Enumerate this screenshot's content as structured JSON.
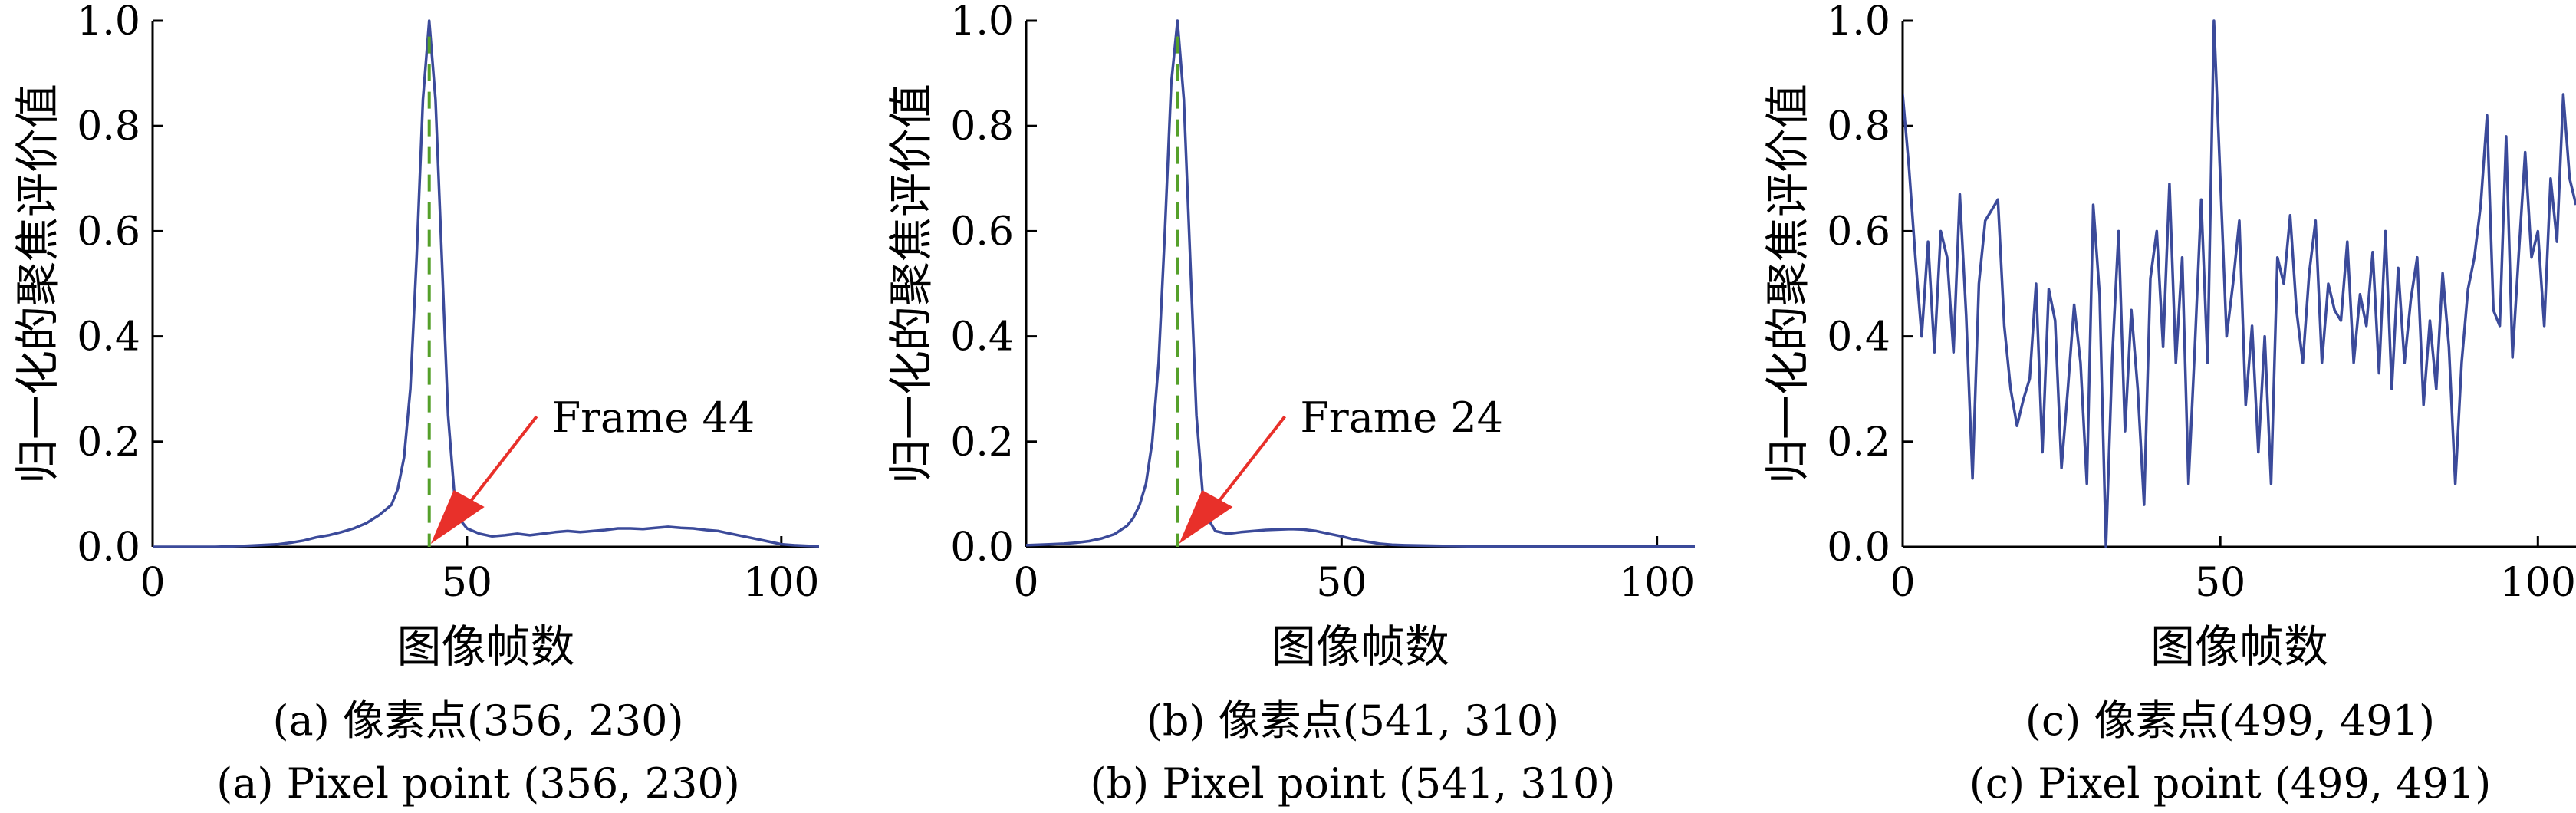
{
  "colors": {
    "line": "#3b4a9a",
    "peak_marker": "#55a02a",
    "arrow": "#e8302a",
    "axis": "#000000"
  },
  "chart_data": [
    {
      "type": "line",
      "title": "",
      "xlabel": "图像帧数",
      "ylabel": "归一化的聚焦评价值",
      "xlim": [
        0,
        106
      ],
      "ylim": [
        0,
        1.0
      ],
      "xticks": [
        "0",
        "50",
        "100"
      ],
      "yticks": [
        "0.0",
        "0.2",
        "0.4",
        "0.6",
        "0.8",
        "1.0"
      ],
      "grid": false,
      "legend": "none",
      "caption_cn": "(a) 像素点(356, 230)",
      "caption_en": "(a) Pixel point (356, 230)",
      "peak_frame": 44,
      "annotation": {
        "text": "Frame 44",
        "x": 44
      },
      "series": [
        {
          "x": [
            0,
            5,
            10,
            15,
            20,
            22,
            24,
            26,
            28,
            30,
            32,
            34,
            36,
            38,
            39,
            40,
            41,
            42,
            43,
            44,
            45,
            46,
            47,
            48,
            49,
            50,
            52,
            54,
            56,
            58,
            60,
            62,
            64,
            66,
            68,
            70,
            72,
            74,
            76,
            78,
            80,
            82,
            84,
            86,
            88,
            90,
            92,
            94,
            96,
            98,
            100,
            102,
            104,
            106
          ],
          "y": [
            0,
            0,
            0,
            0.002,
            0.005,
            0.008,
            0.012,
            0.018,
            0.022,
            0.028,
            0.035,
            0.045,
            0.06,
            0.08,
            0.11,
            0.17,
            0.3,
            0.55,
            0.85,
            1.0,
            0.85,
            0.55,
            0.25,
            0.1,
            0.05,
            0.035,
            0.025,
            0.02,
            0.022,
            0.025,
            0.022,
            0.025,
            0.028,
            0.03,
            0.028,
            0.03,
            0.032,
            0.035,
            0.035,
            0.034,
            0.036,
            0.038,
            0.036,
            0.035,
            0.032,
            0.03,
            0.025,
            0.02,
            0.015,
            0.01,
            0.005,
            0.003,
            0.002,
            0.001
          ]
        }
      ]
    },
    {
      "type": "line",
      "title": "",
      "xlabel": "图像帧数",
      "ylabel": "归一化的聚焦评价值",
      "xlim": [
        0,
        106
      ],
      "ylim": [
        0,
        1.0
      ],
      "xticks": [
        "0",
        "50",
        "100"
      ],
      "yticks": [
        "0.0",
        "0.2",
        "0.4",
        "0.6",
        "0.8",
        "1.0"
      ],
      "grid": false,
      "legend": "none",
      "caption_cn": "(b) 像素点(541, 310)",
      "caption_en": "(b) Pixel point (541, 310)",
      "peak_frame": 24,
      "annotation": {
        "text": "Frame 24",
        "x": 24
      },
      "series": [
        {
          "x": [
            0,
            2,
            4,
            6,
            8,
            10,
            12,
            14,
            16,
            17,
            18,
            19,
            20,
            21,
            22,
            23,
            24,
            25,
            26,
            27,
            28,
            29,
            30,
            32,
            34,
            36,
            38,
            40,
            42,
            44,
            46,
            48,
            50,
            52,
            54,
            56,
            58,
            60,
            65,
            70,
            80,
            90,
            100,
            106
          ],
          "y": [
            0.003,
            0.004,
            0.005,
            0.006,
            0.008,
            0.011,
            0.016,
            0.024,
            0.04,
            0.055,
            0.08,
            0.12,
            0.2,
            0.35,
            0.6,
            0.88,
            1.0,
            0.85,
            0.55,
            0.25,
            0.1,
            0.05,
            0.03,
            0.025,
            0.028,
            0.03,
            0.032,
            0.033,
            0.034,
            0.033,
            0.03,
            0.025,
            0.02,
            0.014,
            0.01,
            0.006,
            0.004,
            0.003,
            0.002,
            0.001,
            0.001,
            0.001,
            0.001,
            0.001
          ]
        }
      ]
    },
    {
      "type": "line",
      "title": "",
      "xlabel": "图像帧数",
      "ylabel": "归一化的聚焦评价值",
      "xlim": [
        0,
        106
      ],
      "ylim": [
        0,
        1.0
      ],
      "xticks": [
        "0",
        "50",
        "100"
      ],
      "yticks": [
        "0.0",
        "0.2",
        "0.4",
        "0.6",
        "0.8",
        "1.0"
      ],
      "grid": false,
      "legend": "none",
      "caption_cn": "(c) 像素点(499, 491)",
      "caption_en": "(c) Pixel point (499, 491)",
      "series": [
        {
          "x": [
            0,
            1,
            2,
            3,
            4,
            5,
            6,
            7,
            8,
            9,
            10,
            11,
            12,
            13,
            14,
            15,
            16,
            17,
            18,
            19,
            20,
            21,
            22,
            23,
            24,
            25,
            26,
            27,
            28,
            29,
            30,
            31,
            32,
            33,
            34,
            35,
            36,
            37,
            38,
            39,
            40,
            41,
            42,
            43,
            44,
            45,
            46,
            47,
            48,
            49,
            50,
            51,
            52,
            53,
            54,
            55,
            56,
            57,
            58,
            59,
            60,
            61,
            62,
            63,
            64,
            65,
            66,
            67,
            68,
            69,
            70,
            71,
            72,
            73,
            74,
            75,
            76,
            77,
            78,
            79,
            80,
            81,
            82,
            83,
            84,
            85,
            86,
            87,
            88,
            89,
            90,
            91,
            92,
            93,
            94,
            95,
            96,
            97,
            98,
            99,
            100,
            101,
            102,
            103,
            104,
            105,
            106
          ],
          "y": [
            0.86,
            0.72,
            0.55,
            0.4,
            0.58,
            0.37,
            0.6,
            0.55,
            0.37,
            0.67,
            0.44,
            0.13,
            0.5,
            0.62,
            0.64,
            0.66,
            0.42,
            0.3,
            0.23,
            0.28,
            0.32,
            0.5,
            0.18,
            0.49,
            0.43,
            0.15,
            0.3,
            0.46,
            0.35,
            0.12,
            0.65,
            0.48,
            0.0,
            0.36,
            0.6,
            0.22,
            0.45,
            0.3,
            0.08,
            0.51,
            0.6,
            0.38,
            0.69,
            0.35,
            0.55,
            0.12,
            0.38,
            0.66,
            0.35,
            1.0,
            0.7,
            0.4,
            0.5,
            0.62,
            0.27,
            0.42,
            0.18,
            0.4,
            0.12,
            0.55,
            0.5,
            0.63,
            0.45,
            0.35,
            0.52,
            0.62,
            0.35,
            0.5,
            0.45,
            0.43,
            0.58,
            0.35,
            0.48,
            0.42,
            0.56,
            0.33,
            0.6,
            0.3,
            0.53,
            0.35,
            0.47,
            0.55,
            0.27,
            0.43,
            0.3,
            0.52,
            0.38,
            0.12,
            0.35,
            0.49,
            0.55,
            0.65,
            0.82,
            0.45,
            0.42,
            0.78,
            0.36,
            0.56,
            0.75,
            0.55,
            0.6,
            0.42,
            0.7,
            0.58,
            0.86,
            0.7,
            0.65
          ]
        }
      ]
    }
  ]
}
